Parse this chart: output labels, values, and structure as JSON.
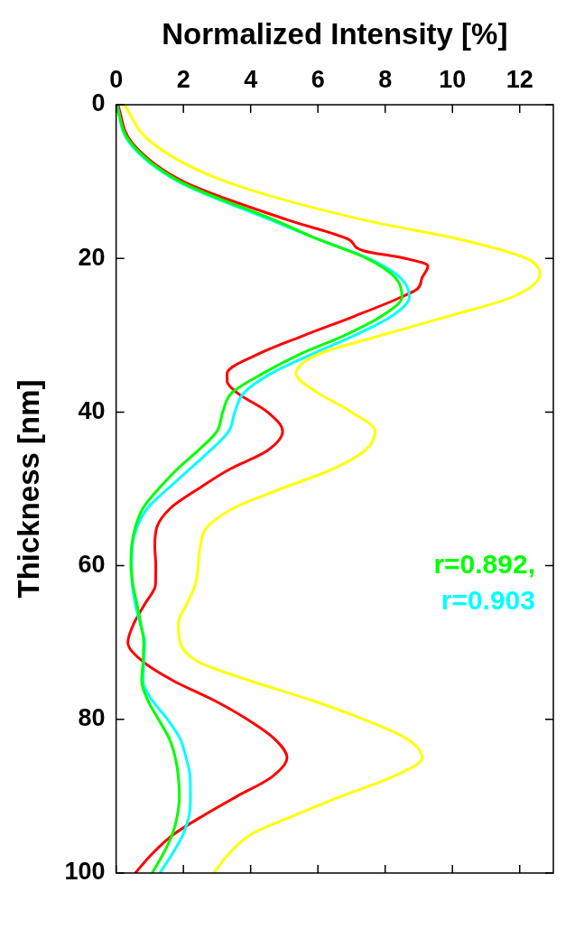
{
  "chart_data": {
    "type": "line",
    "xlabel": "Normalized Intensity [%]",
    "ylabel": "Thickness [nm]",
    "xlim": [
      0,
      13
    ],
    "xticks": [
      0,
      2,
      4,
      6,
      8,
      10,
      12
    ],
    "ylim": [
      100,
      0
    ],
    "yticks": [
      0,
      20,
      40,
      60,
      80,
      100
    ],
    "grid": false,
    "legend": false,
    "marker": "none",
    "line_style": "solid",
    "annotations": [
      "r=0.892,",
      "r=0.903"
    ],
    "series": [
      {
        "color": "#ffff00",
        "values": [
          0,
          5,
          10,
          15,
          17.5,
          20,
          22,
          25,
          27.5,
          30,
          32.5,
          35,
          37.5,
          40,
          42.5,
          45,
          47.5,
          50,
          52.5,
          55,
          57.5,
          60,
          62.5,
          65,
          67.5,
          70,
          72.5,
          75,
          77.5,
          80,
          82.5,
          85,
          87.5,
          90,
          92.5,
          95,
          97.5,
          100
        ],
        "x": [
          0.24,
          1.07,
          3.26,
          7.36,
          10.2,
          12.2,
          12.6,
          11.8,
          9.9,
          7.9,
          6.0,
          5.35,
          6.0,
          7.0,
          7.7,
          7.4,
          6.4,
          4.9,
          3.5,
          2.7,
          2.5,
          2.44,
          2.35,
          2.1,
          1.85,
          1.9,
          2.44,
          4.0,
          5.8,
          7.36,
          8.63,
          9.1,
          8.2,
          6.7,
          5.3,
          4.0,
          3.35,
          2.9
        ]
      },
      {
        "color": "#00ff00",
        "values": [
          0,
          5,
          10,
          15,
          17.5,
          20,
          22.5,
          25,
          27.5,
          30,
          32.5,
          35,
          37.5,
          40,
          42.5,
          45,
          47.5,
          50,
          52.5,
          55,
          57.5,
          60,
          62.5,
          65,
          67.5,
          70,
          72.5,
          75,
          77.5,
          80,
          82.5,
          85,
          87.5,
          90,
          92.5,
          95,
          97.5,
          100
        ],
        "x": [
          0,
          0.44,
          1.9,
          4.7,
          6.0,
          7.45,
          8.3,
          8.5,
          7.9,
          6.8,
          5.45,
          4.35,
          3.44,
          3.17,
          3.0,
          2.44,
          1.8,
          1.26,
          0.8,
          0.57,
          0.46,
          0.44,
          0.5,
          0.62,
          0.73,
          0.82,
          0.8,
          0.76,
          0.94,
          1.26,
          1.58,
          1.76,
          1.85,
          1.88,
          1.82,
          1.67,
          1.4,
          1.07
        ]
      },
      {
        "color": "#00ffff",
        "values": [
          0,
          5,
          10,
          15,
          17.5,
          20,
          22.5,
          25,
          27.5,
          30,
          32.5,
          35,
          37.5,
          40,
          42.5,
          45,
          47.5,
          50,
          52.5,
          55,
          57.5,
          60,
          62.5,
          65,
          67.5,
          70,
          72.5,
          75,
          77.5,
          80,
          82.5,
          85,
          87.5,
          90,
          92.5,
          95,
          97.5,
          100
        ],
        "x": [
          0.02,
          0.4,
          1.85,
          4.6,
          6.0,
          7.5,
          8.45,
          8.72,
          8.2,
          7.1,
          5.8,
          4.6,
          3.8,
          3.53,
          3.35,
          2.8,
          2.17,
          1.53,
          0.94,
          0.62,
          0.48,
          0.46,
          0.48,
          0.57,
          0.71,
          0.85,
          0.82,
          0.8,
          1.07,
          1.53,
          1.9,
          2.08,
          2.2,
          2.21,
          2.17,
          1.99,
          1.67,
          1.3
        ]
      },
      {
        "color": "#ff0000",
        "values": [
          0,
          5,
          10,
          15,
          17.5,
          19,
          20,
          21,
          22.5,
          24,
          25,
          27.5,
          30,
          32.5,
          35,
          36,
          37.5,
          40,
          42.5,
          45,
          47.5,
          50,
          52.5,
          55,
          57.5,
          60,
          62.5,
          65,
          67.5,
          70,
          72.5,
          75,
          77.5,
          80,
          82.5,
          85,
          87.5,
          90,
          92.5,
          95,
          97.5,
          100
        ],
        "x": [
          0.05,
          0.48,
          2.0,
          5.1,
          6.9,
          7.35,
          8.6,
          9.27,
          9.1,
          8.95,
          8.5,
          7.1,
          5.6,
          4.2,
          3.3,
          3.3,
          3.6,
          4.5,
          4.95,
          4.5,
          3.35,
          2.44,
          1.62,
          1.21,
          1.15,
          1.18,
          1.17,
          0.85,
          0.53,
          0.35,
          0.8,
          1.71,
          2.9,
          3.9,
          4.7,
          5.08,
          4.63,
          3.6,
          2.6,
          1.7,
          1.07,
          0.57
        ]
      }
    ]
  }
}
